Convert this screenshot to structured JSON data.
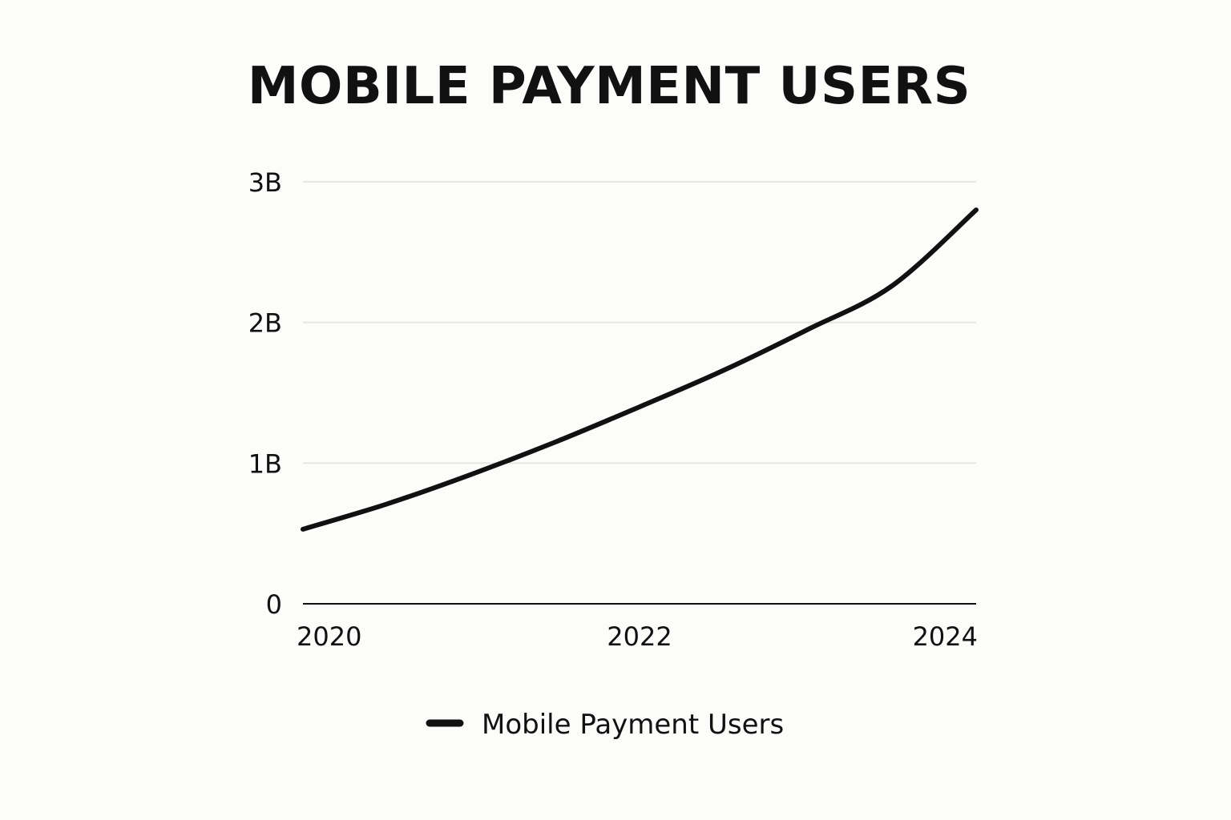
{
  "chart_data": {
    "type": "line",
    "title": "MOBILE PAYMENT USERS",
    "xlabel": "",
    "ylabel": "",
    "x": [
      2020,
      2020.5,
      2021,
      2021.5,
      2022,
      2022.5,
      2023,
      2023.5,
      2024
    ],
    "series": [
      {
        "name": "Mobile Payment Users",
        "color": "#111111",
        "values": [
          0.53,
          0.71,
          0.92,
          1.15,
          1.4,
          1.66,
          1.95,
          2.26,
          2.8
        ]
      }
    ],
    "xlim": [
      2020,
      2024
    ],
    "ylim": [
      0,
      3
    ],
    "x_ticks": [
      {
        "value": 2020,
        "label": "2020"
      },
      {
        "value": 2022,
        "label": "2022"
      },
      {
        "value": 2024,
        "label": "2024"
      }
    ],
    "y_ticks": [
      {
        "value": 0,
        "label": "0"
      },
      {
        "value": 1,
        "label": "1B"
      },
      {
        "value": 2,
        "label": "2B"
      },
      {
        "value": 3,
        "label": "3B"
      }
    ],
    "grid": true,
    "legend_position": "bottom-center",
    "legend": [
      {
        "label": "Mobile Payment Users",
        "color": "#111111"
      }
    ]
  }
}
